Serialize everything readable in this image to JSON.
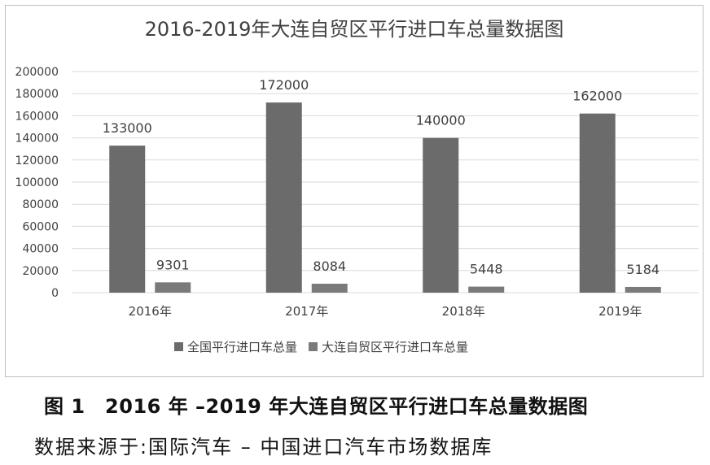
{
  "chart_data": {
    "type": "bar",
    "title": "2016-2019年大连自贸区平行进口车总量数据图",
    "categories": [
      "2016年",
      "2017年",
      "2018年",
      "2019年"
    ],
    "series": [
      {
        "name": "全国平行进口车总量",
        "values": [
          133000,
          172000,
          140000,
          162000
        ],
        "color": "#6b6b6b"
      },
      {
        "name": "大连自贸区平行进口车总量",
        "values": [
          9301,
          8084,
          5448,
          5184
        ],
        "color": "#7a7a7a"
      }
    ],
    "ylim": [
      0,
      200000
    ],
    "yticks": [
      "0",
      "20000",
      "40000",
      "60000",
      "80000",
      "100000",
      "120000",
      "140000",
      "160000",
      "180000",
      "200000"
    ],
    "grid": true,
    "legend": "bottom"
  },
  "caption": "图 1　2016 年 –2019 年大连自贸区平行进口车总量数据图",
  "source": "数据来源于:国际汽车 – 中国进口汽车市场数据库"
}
